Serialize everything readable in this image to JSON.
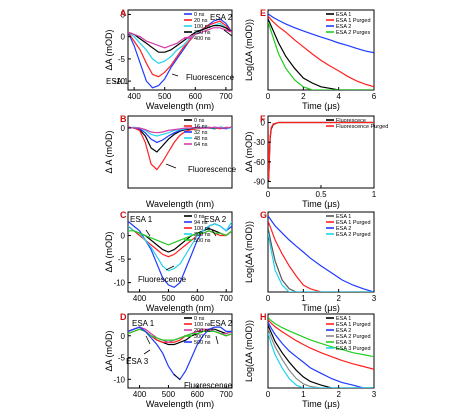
{
  "chart_data": [
    {
      "panel": "A",
      "type": "line",
      "xlabel": "Wavelength (nm)",
      "ylabel": "ΔA (mOD)",
      "xlim": [
        380,
        720
      ],
      "ylim": [
        -12,
        6
      ],
      "xticks": [
        400,
        500,
        600,
        700
      ],
      "yticks": [
        -10,
        -5,
        0,
        5
      ],
      "legend": [
        "0 ns",
        "20 ns",
        "100 ns",
        "250 ns",
        "400 ns"
      ],
      "annotations": [
        "ESA 2",
        "ESA 1",
        "Fluorescence"
      ],
      "colors": [
        "#1f3bff",
        "#ff2020",
        "#22d3ee",
        "#000000",
        "#d63aa8"
      ],
      "x": [
        380,
        400,
        420,
        440,
        460,
        480,
        500,
        520,
        540,
        560,
        580,
        600,
        620,
        640,
        660,
        680,
        700,
        720
      ],
      "series": [
        {
          "name": "0 ns",
          "values": [
            1,
            -2,
            -6,
            -10,
            -11.5,
            -11,
            -9.5,
            -7,
            -5,
            -3,
            -1,
            0.5,
            1.5,
            2.5,
            3.5,
            4,
            3,
            1
          ]
        },
        {
          "name": "20 ns",
          "values": [
            1,
            -1,
            -3,
            -6,
            -8.5,
            -9,
            -8,
            -6.5,
            -4.5,
            -2.5,
            -1,
            0.5,
            1.5,
            2.5,
            3,
            3.5,
            2.5,
            1
          ]
        },
        {
          "name": "100 ns",
          "values": [
            1,
            0,
            -1.5,
            -3,
            -5,
            -6,
            -5.5,
            -4.5,
            -3,
            -2,
            -0.5,
            0.5,
            1.5,
            2,
            2.5,
            3,
            2,
            1
          ]
        },
        {
          "name": "250 ns",
          "values": [
            1,
            0.5,
            -0.5,
            -1.5,
            -2.5,
            -3.5,
            -3.5,
            -3,
            -2,
            -1,
            0,
            1,
            1.5,
            2,
            2.5,
            2.5,
            2,
            1
          ]
        },
        {
          "name": "400 ns",
          "values": [
            1,
            0.5,
            0,
            -1,
            -1.5,
            -2,
            -2.5,
            -2,
            -1.5,
            -0.5,
            0,
            0.5,
            1,
            1.5,
            2,
            2,
            1.5,
            1
          ]
        }
      ]
    },
    {
      "panel": "B",
      "type": "line",
      "xlabel": "Wavelength (nm)",
      "ylabel": "Δ A (mOD)",
      "xlim": [
        360,
        720
      ],
      "ylim": [
        -75,
        15
      ],
      "xticks": [],
      "yticks": [
        0
      ],
      "legend": [
        "0 ns",
        "16 ns",
        "32 ns",
        "48 ns",
        "64 ns"
      ],
      "annotations": [
        "Fluorescence"
      ],
      "colors": [
        "#000000",
        "#ff2020",
        "#1f3bff",
        "#22d3ee",
        "#d63aa8"
      ],
      "x": [
        360,
        380,
        400,
        420,
        440,
        460,
        480,
        500,
        520,
        540,
        560,
        580,
        600,
        620,
        640,
        660,
        680,
        700,
        720
      ],
      "series": [
        {
          "name": "0 ns",
          "values": [
            1,
            0,
            -2,
            -10,
            -25,
            -30,
            -22,
            -14,
            -8,
            -4,
            -2,
            -1,
            0,
            1,
            0,
            -1,
            1,
            0,
            1
          ]
        },
        {
          "name": "16 ns",
          "values": [
            1,
            0,
            -3,
            -18,
            -45,
            -52,
            -42,
            -30,
            -18,
            -9,
            -4,
            -2,
            -1,
            0,
            1,
            0,
            -1,
            1,
            0
          ]
        },
        {
          "name": "32 ns",
          "values": [
            1,
            0,
            -1,
            -6,
            -14,
            -18,
            -15,
            -10,
            -6,
            -3,
            -1,
            0,
            1,
            0,
            0,
            1,
            0,
            -1,
            1
          ]
        },
        {
          "name": "48 ns",
          "values": [
            0,
            1,
            0,
            -3,
            -8,
            -10,
            -8,
            -6,
            -3,
            -2,
            -1,
            0,
            0,
            1,
            0,
            0,
            1,
            0,
            0
          ]
        },
        {
          "name": "64 ns",
          "values": [
            1,
            0,
            0,
            -2,
            -5,
            -6,
            -5,
            -3,
            -2,
            -1,
            0,
            0,
            1,
            0,
            0,
            1,
            0,
            0,
            1
          ]
        }
      ]
    },
    {
      "panel": "C",
      "type": "line",
      "xlabel": "Wavelength (nm)",
      "ylabel": "ΔA (mOD)",
      "xlim": [
        360,
        720
      ],
      "ylim": [
        -12,
        5
      ],
      "xticks": [
        400,
        500,
        600,
        700
      ],
      "yticks": [
        -10,
        -5,
        0
      ],
      "legend": [
        "0 ns",
        "94 ns",
        "100 ns",
        "300 ns",
        "500 ns"
      ],
      "annotations": [
        "ESA 1",
        "ESA 2",
        "Fluorescence"
      ],
      "colors": [
        "#000000",
        "#1f3bff",
        "#ff2020",
        "#22d3ee",
        "#22cc22"
      ],
      "x": [
        360,
        380,
        400,
        420,
        440,
        460,
        480,
        500,
        520,
        540,
        560,
        580,
        600,
        620,
        640,
        660,
        680,
        700,
        720
      ],
      "series": [
        {
          "name": "0 ns",
          "values": [
            2,
            1,
            0.5,
            0,
            -1,
            -2,
            -3,
            -3.5,
            -3,
            -2,
            -1,
            0,
            0.5,
            1,
            1.5,
            1,
            0.5,
            0,
            1
          ]
        },
        {
          "name": "94 ns",
          "values": [
            3,
            2,
            1,
            -1,
            -3,
            -6,
            -9,
            -10.5,
            -11,
            -10,
            -7,
            -4,
            -1,
            1,
            2,
            2.5,
            2,
            1,
            2
          ]
        },
        {
          "name": "100 ns",
          "values": [
            2,
            1,
            0,
            -1,
            -2,
            -3,
            -4,
            -4.5,
            -4,
            -3,
            -2,
            -1,
            0,
            0.5,
            1,
            0.5,
            0,
            0,
            1
          ]
        },
        {
          "name": "300 ns",
          "values": [
            2,
            1,
            0.5,
            -1,
            -2.5,
            -4.5,
            -6.5,
            -7.5,
            -7,
            -6,
            -4,
            -2,
            0,
            1,
            2,
            2.5,
            2,
            1,
            3
          ]
        },
        {
          "name": "500 ns",
          "values": [
            1,
            1,
            0.5,
            0,
            -0.5,
            -1,
            -1.5,
            -2,
            -1.5,
            -1,
            -0.5,
            0,
            0.5,
            0.5,
            1,
            0.5,
            0.5,
            0,
            1
          ]
        }
      ]
    },
    {
      "panel": "D",
      "type": "line",
      "xlabel": "Wavelength (nm)",
      "ylabel": "ΔA (mOD)",
      "xlim": [
        360,
        720
      ],
      "ylim": [
        -12,
        5
      ],
      "xticks": [
        400,
        500,
        600,
        700
      ],
      "yticks": [
        -10,
        -5,
        0
      ],
      "legend": [
        "0 ns",
        "100 ns",
        "200 ns",
        "300 ns",
        "500 ns"
      ],
      "annotations": [
        "ESA 1",
        "ESA 2",
        "ESA 3",
        "Fluorescence"
      ],
      "colors": [
        "#000000",
        "#ff2020",
        "#d63aa8",
        "#22cc22",
        "#1f3bff"
      ],
      "x": [
        360,
        380,
        400,
        420,
        440,
        460,
        480,
        500,
        520,
        540,
        560,
        580,
        600,
        620,
        640,
        660,
        680,
        700,
        720
      ],
      "series": [
        {
          "name": "0 ns",
          "values": [
            1,
            1.5,
            2,
            1,
            0,
            -1,
            -1.5,
            -2,
            -2,
            -1.5,
            -1,
            0,
            0.5,
            1,
            1.5,
            1.5,
            1,
            0.5,
            1
          ]
        },
        {
          "name": "100 ns",
          "values": [
            0.5,
            1,
            1.5,
            1,
            0,
            -1,
            -1.5,
            -1.5,
            -1.5,
            -1,
            0,
            0.5,
            1,
            1,
            1.5,
            1,
            0.5,
            0,
            0.5
          ]
        },
        {
          "name": "200 ns",
          "values": [
            1,
            1.5,
            2,
            1.5,
            0.5,
            -0.5,
            -1,
            -1.5,
            -1,
            -0.5,
            0,
            0.5,
            1,
            1.5,
            1.5,
            1,
            0.5,
            0.5,
            1
          ]
        },
        {
          "name": "300 ns",
          "values": [
            0.5,
            1,
            1.5,
            1,
            0,
            -0.5,
            -1,
            -1,
            -1,
            -0.5,
            0,
            0.5,
            0.5,
            1,
            1,
            1,
            0.5,
            0,
            0.5
          ]
        },
        {
          "name": "500 ns",
          "values": [
            1,
            1.5,
            2,
            1,
            -0.5,
            -2,
            -4,
            -7,
            -9,
            -10,
            -8,
            -5,
            -2,
            0,
            1.5,
            2,
            2,
            1,
            1
          ]
        }
      ]
    },
    {
      "panel": "E",
      "type": "line",
      "xlabel": "Time (μs)",
      "ylabel": "Log(ΔA (mOD))",
      "xlim": [
        0,
        6
      ],
      "ylim": [
        0.1,
        10
      ],
      "xticks": [
        0,
        2,
        4,
        6
      ],
      "yticks": [],
      "legend": [
        "ESA 1",
        "ESA 1 Purged",
        "ESA 2",
        "ESA 2 Purges"
      ],
      "colors": [
        "#000000",
        "#ff2020",
        "#1f3bff",
        "#22cc22"
      ],
      "x": [
        0,
        0.3,
        0.6,
        1,
        1.5,
        2,
        2.5,
        3,
        3.5,
        4,
        4.5,
        5,
        5.5,
        6
      ],
      "series": [
        {
          "name": "ESA 1",
          "values": [
            6,
            3,
            1.5,
            0.7,
            0.35,
            0.2,
            0.15,
            0.12,
            0.11,
            0.1,
            0.1,
            0.1,
            0.1,
            0.1
          ]
        },
        {
          "name": "ESA 1 Purged",
          "values": [
            7,
            5,
            3.8,
            2.8,
            1.8,
            1.2,
            0.8,
            0.55,
            0.4,
            0.3,
            0.22,
            0.17,
            0.14,
            0.12
          ]
        },
        {
          "name": "ESA 2",
          "values": [
            8,
            6.5,
            5.5,
            4.5,
            3.6,
            3,
            2.5,
            2.1,
            1.8,
            1.5,
            1.3,
            1.1,
            0.95,
            0.85
          ]
        },
        {
          "name": "ESA 2 Purges",
          "values": [
            5,
            2,
            0.8,
            0.35,
            0.18,
            0.12,
            0.1,
            0.1,
            0.1,
            0.1,
            0.1,
            0.1,
            0.1,
            0.1
          ]
        }
      ]
    },
    {
      "panel": "F",
      "type": "line",
      "xlabel": "Time (μs)",
      "ylabel": "ΔA (mOD)",
      "xlim": [
        0,
        1
      ],
      "ylim": [
        -100,
        10
      ],
      "xticks": [
        0,
        0.5,
        1.0
      ],
      "yticks": [
        -90,
        -60,
        -30,
        0
      ],
      "legend": [
        "Fluorescece",
        "Fluorescence Purged"
      ],
      "colors": [
        "#000000",
        "#ff2020"
      ],
      "x": [
        0,
        0.005,
        0.01,
        0.015,
        0.02,
        0.03,
        0.05,
        0.1,
        0.2,
        0.3,
        0.4,
        0.5,
        0.6,
        0.7,
        0.8,
        0.9,
        1.0
      ],
      "series": [
        {
          "name": "Fluorescece",
          "values": [
            0,
            -90,
            -70,
            -45,
            -25,
            -10,
            -3,
            0,
            0,
            0,
            0,
            0,
            0,
            0,
            0,
            0,
            0
          ]
        },
        {
          "name": "Fluorescence Purged",
          "values": [
            0,
            -88,
            -68,
            -42,
            -22,
            -8,
            -2,
            0,
            0,
            0,
            0,
            0,
            0,
            0,
            0,
            0,
            0
          ]
        }
      ]
    },
    {
      "panel": "G",
      "type": "line",
      "xlabel": "Time (μs)",
      "ylabel": "Log(ΔA (mOD))",
      "xlim": [
        0,
        3
      ],
      "ylim": [
        0.1,
        10
      ],
      "xticks": [
        0,
        1,
        2,
        3
      ],
      "yticks": [],
      "legend": [
        "ESA 1",
        "ESA 1 Purged",
        "ESA 2",
        "ESA 2 Purged"
      ],
      "colors": [
        "#555555",
        "#ff2020",
        "#1f3bff",
        "#22d3ee"
      ],
      "x": [
        0,
        0.1,
        0.2,
        0.4,
        0.6,
        0.8,
        1.0,
        1.2,
        1.5,
        1.8,
        2.1,
        2.4,
        2.7,
        3.0
      ],
      "series": [
        {
          "name": "ESA 1",
          "values": [
            4,
            1.5,
            0.6,
            0.2,
            0.12,
            0.1,
            0.1,
            0.1,
            0.1,
            0.1,
            0.1,
            0.1,
            0.1,
            0.1
          ]
        },
        {
          "name": "ESA 1 Purged",
          "values": [
            6,
            3.5,
            2,
            0.9,
            0.45,
            0.25,
            0.15,
            0.12,
            0.1,
            0.1,
            0.1,
            0.1,
            0.1,
            0.1
          ]
        },
        {
          "name": "ESA 2",
          "values": [
            8,
            6,
            4.5,
            3,
            2,
            1.4,
            1,
            0.7,
            0.45,
            0.3,
            0.2,
            0.15,
            0.12,
            0.1
          ]
        },
        {
          "name": "ESA 2 Purged",
          "values": [
            3,
            1,
            0.35,
            0.15,
            0.1,
            0.1,
            0.1,
            0.1,
            0.1,
            0.1,
            0.1,
            0.1,
            0.1,
            0.1
          ]
        }
      ]
    },
    {
      "panel": "H",
      "type": "line",
      "xlabel": "Time (μs)",
      "ylabel": "Log(ΔA (mOD))",
      "xlim": [
        0,
        3
      ],
      "ylim": [
        0.1,
        10
      ],
      "xticks": [
        0,
        1,
        2,
        3
      ],
      "yticks": [],
      "legend": [
        "ESA 1",
        "ESA 1 Purged",
        "ESA 2",
        "ESA 2 Purged",
        "ESA 3",
        "ESA 3 Purged"
      ],
      "colors": [
        "#000000",
        "#ff2020",
        "#1f3bff",
        "#888888",
        "#22cc22",
        "#22d3ee"
      ],
      "x": [
        0,
        0.1,
        0.2,
        0.4,
        0.6,
        0.8,
        1.0,
        1.2,
        1.5,
        1.8,
        2.1,
        2.4,
        2.7,
        3.0
      ],
      "series": [
        {
          "name": "ESA 1",
          "values": [
            5,
            3,
            1.8,
            0.9,
            0.5,
            0.3,
            0.2,
            0.15,
            0.12,
            0.1,
            0.1,
            0.1,
            0.1,
            0.1
          ]
        },
        {
          "name": "ESA 1 Purged",
          "values": [
            7,
            5.5,
            4.5,
            3.3,
            2.5,
            1.9,
            1.5,
            1.2,
            0.9,
            0.7,
            0.55,
            0.45,
            0.38,
            0.32
          ]
        },
        {
          "name": "ESA 2",
          "values": [
            6,
            4,
            2.8,
            1.6,
            1,
            0.7,
            0.5,
            0.35,
            0.25,
            0.18,
            0.14,
            0.12,
            0.1,
            0.1
          ]
        },
        {
          "name": "ESA 2 Purged",
          "values": [
            4,
            2.2,
            1.3,
            0.6,
            0.3,
            0.18,
            0.13,
            0.11,
            0.1,
            0.1,
            0.1,
            0.1,
            0.1,
            0.1
          ]
        },
        {
          "name": "ESA 3",
          "values": [
            8,
            6.5,
            5.5,
            4.3,
            3.5,
            2.9,
            2.4,
            2,
            1.6,
            1.3,
            1.1,
            0.9,
            0.8,
            0.7
          ]
        },
        {
          "name": "ESA 3 Purged",
          "values": [
            3,
            1.5,
            0.8,
            0.35,
            0.18,
            0.12,
            0.1,
            0.1,
            0.1,
            0.1,
            0.1,
            0.1,
            0.1,
            0.1
          ]
        }
      ]
    }
  ]
}
